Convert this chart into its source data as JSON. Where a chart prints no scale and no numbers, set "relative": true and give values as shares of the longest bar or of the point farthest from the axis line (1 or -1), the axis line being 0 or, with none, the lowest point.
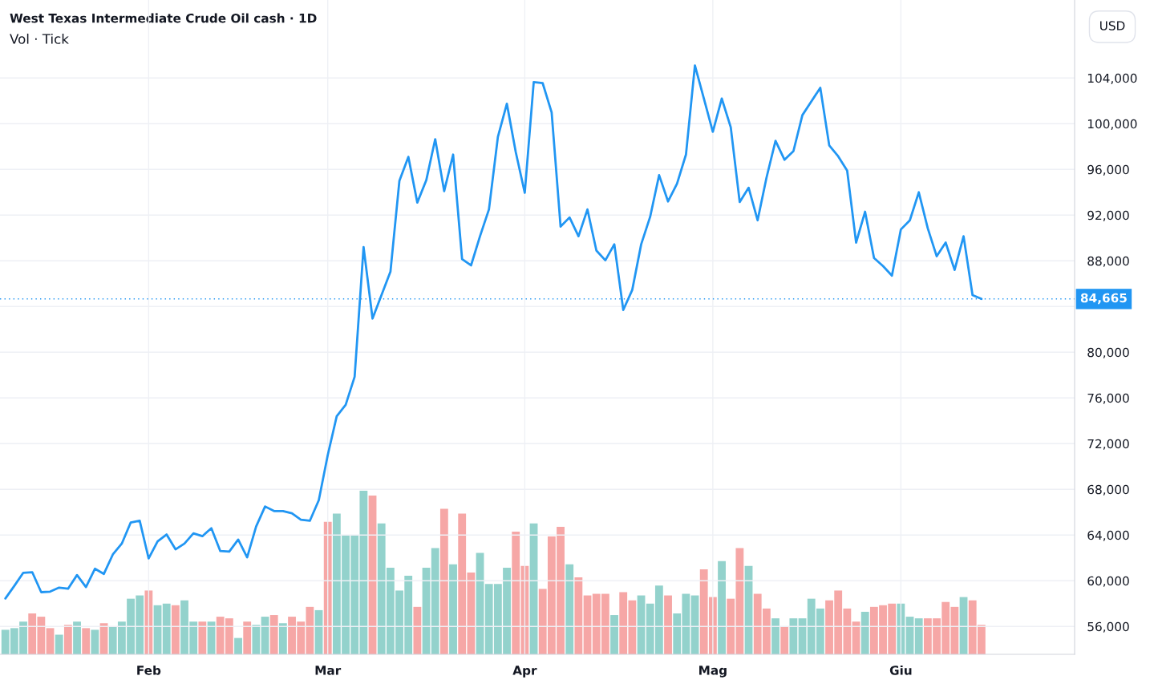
{
  "chart_data": [
    {
      "type": "line",
      "title": "West Texas Intermediate Crude Oil cash · 1D",
      "ylabel": "USD",
      "categories": [
        null,
        null,
        null,
        null,
        null,
        null,
        null,
        null,
        null,
        null,
        null,
        null,
        null,
        null,
        null,
        null,
        "Feb",
        null,
        null,
        null,
        null,
        null,
        null,
        null,
        null,
        null,
        null,
        null,
        null,
        null,
        null,
        null,
        null,
        null,
        null,
        null,
        "Mar",
        null,
        null,
        null,
        null,
        null,
        null,
        null,
        null,
        null,
        null,
        null,
        null,
        null,
        null,
        null,
        null,
        null,
        null,
        null,
        null,
        null,
        "Apr",
        null,
        null,
        null,
        null,
        null,
        null,
        null,
        null,
        null,
        null,
        null,
        null,
        null,
        null,
        null,
        null,
        null,
        null,
        null,
        null,
        "Mag",
        null,
        null,
        null,
        null,
        null,
        null,
        null,
        null,
        null,
        null,
        null,
        null,
        null,
        null,
        null,
        null,
        null,
        null,
        null,
        null,
        "Giu",
        null,
        null,
        null,
        null,
        null,
        null,
        null,
        null,
        null
      ],
      "series": [
        {
          "color": "#2196f3",
          "values": [
            58450,
            59550,
            60700,
            60750,
            59000,
            59050,
            59400,
            59300,
            60500,
            59450,
            61050,
            60600,
            62300,
            63250,
            65100,
            65250,
            61950,
            63450,
            64050,
            62750,
            63250,
            64150,
            63900,
            64600,
            62600,
            62550,
            63600,
            62050,
            64750,
            66500,
            66100,
            66100,
            65900,
            65350,
            65250,
            67050,
            71000,
            74400,
            75400,
            77850,
            89200,
            82950,
            85000,
            87050,
            95000,
            97100,
            93100,
            95050,
            98650,
            94100,
            97300,
            88150,
            87600,
            90150,
            92500,
            98850,
            101750,
            97500,
            93950,
            103650,
            103550,
            101000,
            91000,
            91800,
            90150,
            92500,
            88900,
            88050,
            89450,
            83700,
            85450,
            89450,
            91850,
            95500,
            93200,
            94750,
            97300,
            105100,
            102200,
            99300,
            102200,
            99700,
            93150,
            94400,
            91550,
            95300,
            98500,
            96850,
            97600,
            100750,
            101950,
            103150,
            98100,
            97150,
            95900,
            89600,
            92300,
            88250,
            87550,
            86700,
            90750,
            91550,
            94000,
            90850,
            88400,
            89600,
            87200,
            90150,
            85000,
            84665
          ]
        }
      ],
      "ylim": [
        53560,
        110830
      ],
      "yticks": [
        {
          "value": 56000,
          "label": "56,000"
        },
        {
          "value": 60000,
          "label": "60,000"
        },
        {
          "value": 64000,
          "label": "64,000"
        },
        {
          "value": 68000,
          "label": "68,000"
        },
        {
          "value": 72000,
          "label": "72,000"
        },
        {
          "value": 76000,
          "label": "76,000"
        },
        {
          "value": 80000,
          "label": "80,000"
        },
        {
          "value": 84000,
          "label": null
        },
        {
          "value": 88000,
          "label": "88,000"
        },
        {
          "value": 92000,
          "label": "92,000"
        },
        {
          "value": 96000,
          "label": "96,000"
        },
        {
          "value": 100000,
          "label": "100,000"
        },
        {
          "value": 104000,
          "label": "104,000"
        }
      ],
      "grid": true,
      "ref_lines": [
        {
          "axis": "y",
          "value": 84665,
          "label": "84,665",
          "color": "#2196f3",
          "line_style": "dotted"
        }
      ]
    },
    {
      "type": "bar",
      "title": "Vol · Tick",
      "relative": true,
      "categories": [
        null,
        null,
        null,
        null,
        null,
        null,
        null,
        null,
        null,
        null,
        null,
        null,
        null,
        null,
        null,
        null,
        null,
        null,
        null,
        null,
        null,
        null,
        null,
        null,
        null,
        null,
        null,
        null,
        null,
        null,
        null,
        null,
        null,
        null,
        null,
        null,
        null,
        null,
        null,
        null,
        null,
        null,
        null,
        null,
        null,
        null,
        null,
        null,
        null,
        null,
        null,
        null,
        null,
        null,
        null,
        null,
        null,
        null,
        null,
        null,
        null,
        null,
        null,
        null,
        null,
        null,
        null,
        null,
        null,
        null,
        null,
        null,
        null,
        null,
        null,
        null,
        null,
        null,
        null,
        null,
        null,
        null,
        null,
        null,
        null,
        null,
        null,
        null,
        null,
        null,
        null,
        null,
        null,
        null,
        null,
        null,
        null,
        null,
        null,
        null,
        null,
        null,
        null,
        null,
        null,
        null,
        null,
        null,
        null,
        null
      ],
      "series": [
        {
          "values": [
            0.15,
            0.16,
            0.2,
            0.25,
            0.23,
            0.16,
            0.12,
            0.18,
            0.2,
            0.16,
            0.15,
            0.19,
            0.17,
            0.2,
            0.34,
            0.36,
            0.39,
            0.3,
            0.31,
            0.3,
            0.33,
            0.2,
            0.2,
            0.2,
            0.23,
            0.22,
            0.1,
            0.2,
            0.18,
            0.23,
            0.24,
            0.19,
            0.23,
            0.2,
            0.29,
            0.27,
            0.81,
            0.86,
            0.73,
            0.73,
            1,
            0.97,
            0.8,
            0.53,
            0.39,
            0.48,
            0.29,
            0.53,
            0.65,
            0.89,
            0.55,
            0.86,
            0.5,
            0.62,
            0.43,
            0.43,
            0.53,
            0.75,
            0.54,
            0.8,
            0.4,
            0.72,
            0.78,
            0.55,
            0.47,
            0.36,
            0.37,
            0.37,
            0.24,
            0.38,
            0.33,
            0.36,
            0.31,
            0.42,
            0.36,
            0.25,
            0.37,
            0.36,
            0.52,
            0.35,
            0.57,
            0.34,
            0.65,
            0.54,
            0.37,
            0.28,
            0.22,
            0.17,
            0.22,
            0.22,
            0.34,
            0.28,
            0.33,
            0.39,
            0.28,
            0.2,
            0.26,
            0.29,
            0.3,
            0.31,
            0.31,
            0.23,
            0.22,
            0.22,
            0.22,
            0.32,
            0.29,
            0.35,
            0.33,
            0.18
          ],
          "colors": [
            "#93d2cc",
            "#93d2cc",
            "#93d2cc",
            "#f6a7a6",
            "#f6a7a6",
            "#f6a7a6",
            "#93d2cc",
            "#f6a7a6",
            "#93d2cc",
            "#f6a7a6",
            "#93d2cc",
            "#f6a7a6",
            "#93d2cc",
            "#93d2cc",
            "#93d2cc",
            "#93d2cc",
            "#f6a7a6",
            "#93d2cc",
            "#93d2cc",
            "#f6a7a6",
            "#93d2cc",
            "#93d2cc",
            "#f6a7a6",
            "#93d2cc",
            "#f6a7a6",
            "#f6a7a6",
            "#93d2cc",
            "#f6a7a6",
            "#93d2cc",
            "#93d2cc",
            "#f6a7a6",
            "#93d2cc",
            "#f6a7a6",
            "#f6a7a6",
            "#f6a7a6",
            "#93d2cc",
            "#f6a7a6",
            "#93d2cc",
            "#93d2cc",
            "#93d2cc",
            "#93d2cc",
            "#f6a7a6",
            "#93d2cc",
            "#93d2cc",
            "#93d2cc",
            "#93d2cc",
            "#f6a7a6",
            "#93d2cc",
            "#93d2cc",
            "#f6a7a6",
            "#93d2cc",
            "#f6a7a6",
            "#f6a7a6",
            "#93d2cc",
            "#93d2cc",
            "#93d2cc",
            "#93d2cc",
            "#f6a7a6",
            "#f6a7a6",
            "#93d2cc",
            "#f6a7a6",
            "#f6a7a6",
            "#f6a7a6",
            "#93d2cc",
            "#f6a7a6",
            "#f6a7a6",
            "#f6a7a6",
            "#f6a7a6",
            "#93d2cc",
            "#f6a7a6",
            "#f6a7a6",
            "#93d2cc",
            "#93d2cc",
            "#93d2cc",
            "#f6a7a6",
            "#93d2cc",
            "#93d2cc",
            "#93d2cc",
            "#f6a7a6",
            "#f6a7a6",
            "#93d2cc",
            "#f6a7a6",
            "#f6a7a6",
            "#93d2cc",
            "#f6a7a6",
            "#f6a7a6",
            "#93d2cc",
            "#f6a7a6",
            "#93d2cc",
            "#93d2cc",
            "#93d2cc",
            "#93d2cc",
            "#f6a7a6",
            "#f6a7a6",
            "#f6a7a6",
            "#f6a7a6",
            "#93d2cc",
            "#f6a7a6",
            "#f6a7a6",
            "#f6a7a6",
            "#93d2cc",
            "#93d2cc",
            "#93d2cc",
            "#f6a7a6",
            "#f6a7a6",
            "#f6a7a6",
            "#f6a7a6",
            "#93d2cc",
            "#f6a7a6",
            "#f6a7a6"
          ]
        }
      ]
    }
  ]
}
